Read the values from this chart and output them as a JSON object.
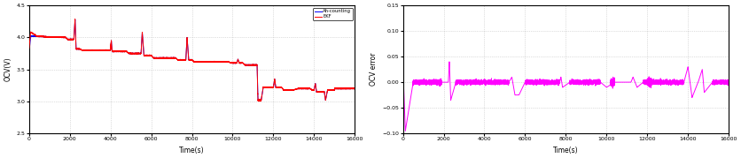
{
  "left_plot": {
    "ylabel": "OCV(V)",
    "xlabel": "Time(s)",
    "xlim": [
      0,
      16000
    ],
    "ylim": [
      2.5,
      4.5
    ],
    "yticks": [
      2.5,
      3.0,
      3.5,
      4.0,
      4.5
    ],
    "xticks": [
      0,
      2000,
      4000,
      6000,
      8000,
      10000,
      12000,
      14000,
      16000
    ],
    "legend": [
      "Ah-counting",
      "EKF"
    ],
    "line_colors_blue": "#0000ff",
    "line_colors_red": "#ff0000",
    "grid_color": "#b0b0b0",
    "background": "#ffffff"
  },
  "right_plot": {
    "ylabel": "OCV error",
    "xlabel": "Time(s)",
    "xlim": [
      0,
      16000
    ],
    "ylim": [
      -0.1,
      0.15
    ],
    "yticks": [
      -0.1,
      -0.05,
      0.0,
      0.05,
      0.1,
      0.15
    ],
    "xticks": [
      0,
      2000,
      4000,
      6000,
      8000,
      10000,
      12000,
      14000,
      16000
    ],
    "line_color": "#ff00ff",
    "grid_color": "#b0b0b0",
    "background": "#ffffff"
  }
}
